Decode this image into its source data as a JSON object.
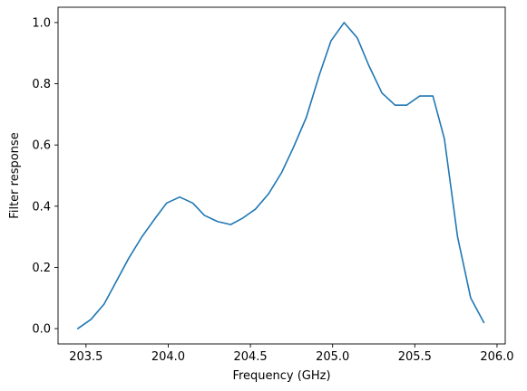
{
  "chart_data": {
    "type": "line",
    "title": "",
    "xlabel": "Frequency (GHz)",
    "ylabel": "Filter response",
    "xlim": [
      203.33,
      206.05
    ],
    "ylim": [
      -0.05,
      1.05
    ],
    "xticks": [
      203.5,
      204.0,
      204.5,
      205.0,
      205.5,
      206.0
    ],
    "xtick_labels": [
      "203.5",
      "204.0",
      "204.5",
      "205.0",
      "205.5",
      "206.0"
    ],
    "yticks": [
      0.0,
      0.2,
      0.4,
      0.6,
      0.8,
      1.0
    ],
    "ytick_labels": [
      "0.0",
      "0.2",
      "0.4",
      "0.6",
      "0.8",
      "1.0"
    ],
    "grid": false,
    "line_color": "#1f77b4",
    "series": [
      {
        "x": [
          203.45,
          203.53,
          203.61,
          203.69,
          203.76,
          203.84,
          203.92,
          203.99,
          204.07,
          204.15,
          204.22,
          204.3,
          204.38,
          204.45,
          204.53,
          204.61,
          204.69,
          204.76,
          204.84,
          204.92,
          204.99,
          205.07,
          205.15,
          205.22,
          205.3,
          205.38,
          205.45,
          205.53,
          205.61,
          205.68,
          205.76,
          205.84,
          205.92
        ],
        "y": [
          0.0,
          0.03,
          0.08,
          0.16,
          0.23,
          0.3,
          0.36,
          0.41,
          0.43,
          0.41,
          0.37,
          0.35,
          0.34,
          0.36,
          0.39,
          0.44,
          0.51,
          0.59,
          0.69,
          0.83,
          0.94,
          1.0,
          0.95,
          0.86,
          0.77,
          0.73,
          0.73,
          0.76,
          0.76,
          0.62,
          0.3,
          0.1,
          0.02
        ]
      }
    ]
  }
}
